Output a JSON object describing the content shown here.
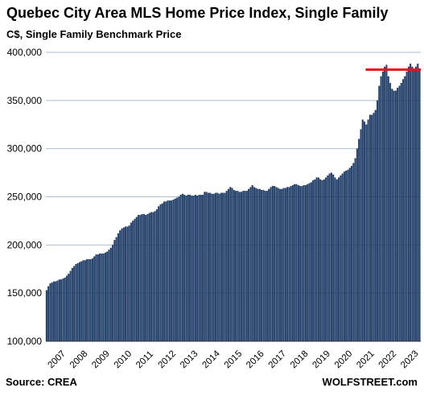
{
  "header": {
    "title": "Quebec City Area MLS Home Price Index, Single Family",
    "subtitle": "C$, Single Family Benchmark Price"
  },
  "footer": {
    "source": "Source: CREA",
    "brand": "WOLFSTREET.com"
  },
  "colors": {
    "bar": "#1f3f6e",
    "bar_edge": "#0e2545",
    "grid": "#a9bfd3",
    "reference_line": "#e8141b"
  },
  "chart_data": {
    "type": "bar",
    "title": "Quebec City Area MLS Home Price Index, Single Family",
    "subtitle": "C$, Single Family Benchmark Price",
    "xlabel": "",
    "ylabel": "",
    "ylim": [
      100000,
      400000
    ],
    "yticks": [
      100000,
      150000,
      200000,
      250000,
      300000,
      350000,
      400000
    ],
    "ytick_labels": [
      "100,000",
      "150,000",
      "200,000",
      "250,000",
      "300,000",
      "350,000",
      "400,000"
    ],
    "xtick_labels": [
      "2007",
      "2008",
      "2009",
      "2010",
      "2011",
      "2012",
      "2013",
      "2014",
      "2015",
      "2016",
      "2017",
      "2018",
      "2019",
      "2020",
      "2021",
      "2022",
      "2023"
    ],
    "frequency": "monthly",
    "start": "2007-01",
    "grid": true,
    "reference_line": {
      "y": 382000,
      "from": "2021-07",
      "to": "2023-12"
    },
    "series": [
      {
        "values": [
          153000,
          157000,
          160000,
          161000,
          162000,
          162000,
          163000,
          164000,
          164000,
          165000,
          166000,
          168000,
          170000,
          173000,
          176000,
          178000,
          180000,
          181000,
          182000,
          183000,
          184000,
          184000,
          185000,
          185000,
          185000,
          186000,
          188000,
          190000,
          190000,
          191000,
          191000,
          191000,
          192000,
          193000,
          195000,
          197000,
          200000,
          205000,
          208000,
          212000,
          215000,
          217000,
          218000,
          219000,
          219000,
          220000,
          223000,
          225000,
          227000,
          229000,
          231000,
          231000,
          232000,
          232000,
          231000,
          232000,
          233000,
          234000,
          234000,
          235000,
          237000,
          240000,
          242000,
          243000,
          245000,
          245000,
          246000,
          246000,
          246000,
          247000,
          248000,
          249000,
          250000,
          252000,
          253000,
          252000,
          251000,
          252000,
          252000,
          251000,
          251000,
          252000,
          251000,
          252000,
          252000,
          252000,
          255000,
          255000,
          254000,
          254000,
          253000,
          253000,
          254000,
          254000,
          253000,
          254000,
          254000,
          254000,
          256000,
          258000,
          260000,
          259000,
          257000,
          256000,
          256000,
          255000,
          255000,
          256000,
          256000,
          256000,
          258000,
          260000,
          262000,
          260000,
          259000,
          258000,
          258000,
          257000,
          257000,
          256000,
          256000,
          258000,
          260000,
          261000,
          261000,
          260000,
          259000,
          258000,
          258000,
          259000,
          259000,
          260000,
          260000,
          261000,
          262000,
          263000,
          263000,
          262000,
          261000,
          261000,
          262000,
          262000,
          263000,
          264000,
          265000,
          267000,
          268000,
          270000,
          270000,
          268000,
          267000,
          268000,
          270000,
          272000,
          274000,
          275000,
          273000,
          270000,
          268000,
          270000,
          272000,
          274000,
          276000,
          277000,
          278000,
          280000,
          282000,
          285000,
          290000,
          300000,
          310000,
          320000,
          330000,
          328000,
          325000,
          330000,
          335000,
          335000,
          337000,
          340000,
          350000,
          365000,
          375000,
          380000,
          385000,
          387000,
          375000,
          368000,
          362000,
          360000,
          360000,
          363000,
          365000,
          368000,
          372000,
          375000,
          380000,
          385000,
          388000,
          385000,
          383000,
          385000,
          388000,
          383000
        ]
      }
    ]
  }
}
